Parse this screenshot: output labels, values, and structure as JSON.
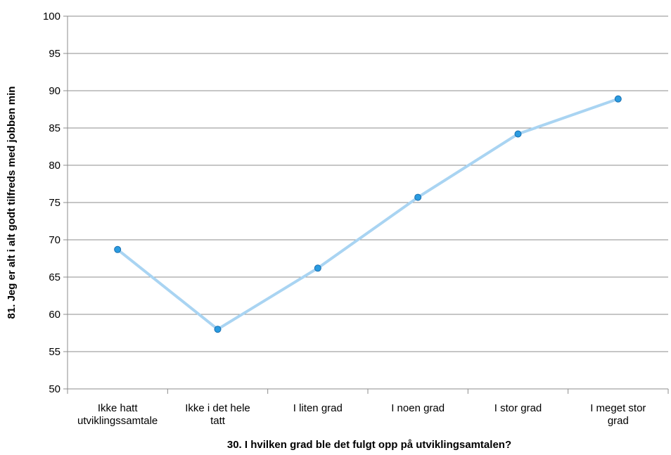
{
  "chart_data": {
    "type": "line",
    "categories": [
      [
        "Ikke hatt",
        "utviklingssamtale"
      ],
      [
        "Ikke i det hele",
        "tatt"
      ],
      [
        "I liten grad"
      ],
      [
        "I noen grad"
      ],
      [
        "I stor grad"
      ],
      [
        "I meget stor",
        "grad"
      ]
    ],
    "series": [
      {
        "values": [
          68.7,
          58.0,
          66.2,
          75.7,
          84.2,
          88.9
        ]
      }
    ],
    "xlabel": "30. I hvilken grad ble det fulgt opp på utviklingsamtalen?",
    "ylabel": "81. Jeg er alt i alt godt tilfreds med jobben min",
    "ylim": [
      50,
      100
    ],
    "ytick_step": 5,
    "grid": true,
    "legend": "none",
    "colors": {
      "line": "#a9d4f2",
      "marker_fill": "#2a9be0",
      "marker_stroke": "#1a6fb0",
      "grid": "#8c8c8c",
      "axis": "#8c8c8c"
    }
  }
}
